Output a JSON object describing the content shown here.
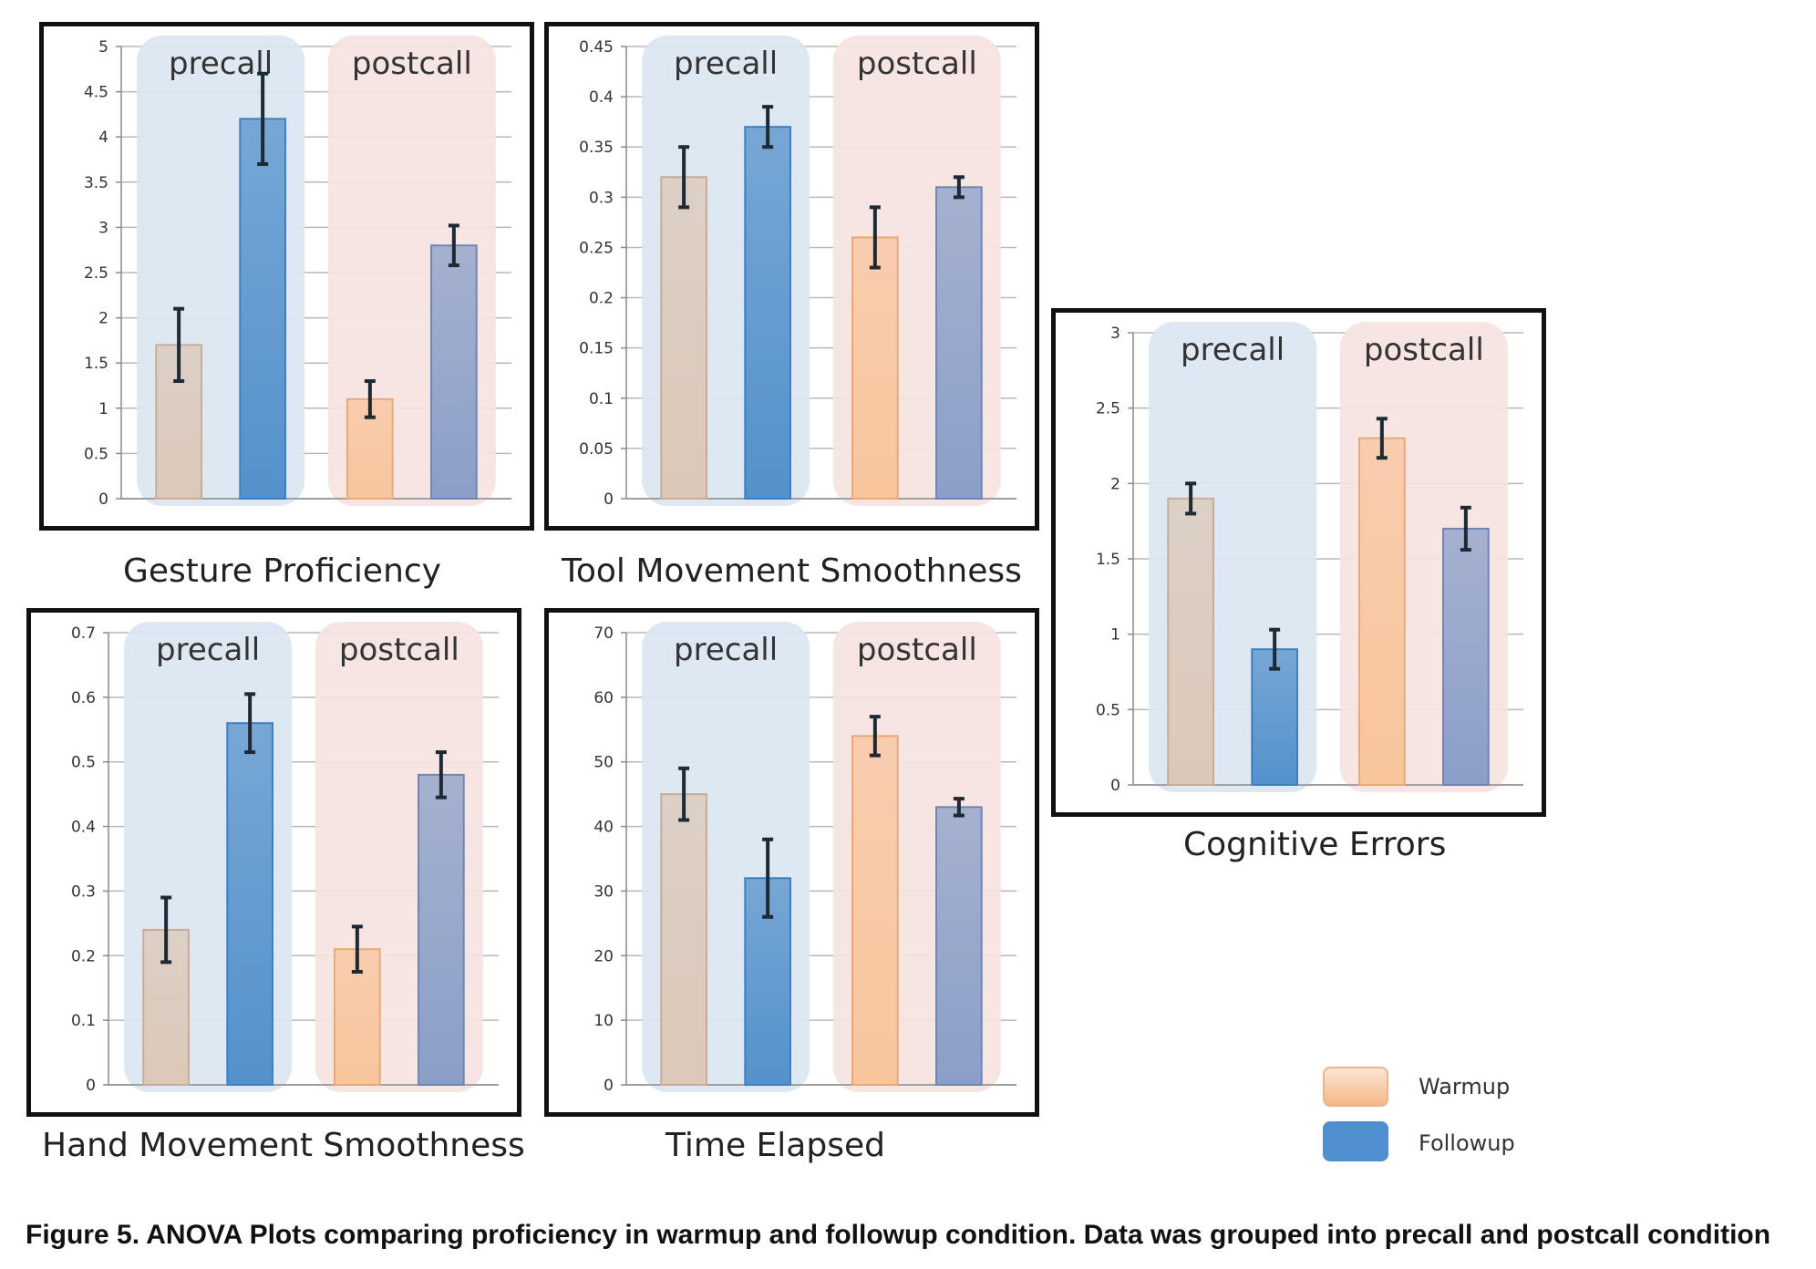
{
  "legend": {
    "items": [
      {
        "label": "Warmup",
        "color": "#f7c193"
      },
      {
        "label": "Followup",
        "color": "#4f8fd0"
      }
    ]
  },
  "caption": "Figure 5. ANOVA Plots comparing proficiency in warmup and followup condition. Data was grouped into precall and postcall condition",
  "colors": {
    "precall_band": "#dbe6f1",
    "postcall_band": "#f6e3e1",
    "warmup_precall": "#dcc8b8",
    "warmup_postcall": "#f8c59c",
    "followup_precall": "#5491cc",
    "followup_postcall": "#8a9fc8",
    "error_bar": "#1e2a33"
  },
  "chart_data": [
    {
      "type": "bar",
      "title": "Gesture Proficiency",
      "groups": [
        "precall",
        "postcall"
      ],
      "series_order": [
        "Warmup",
        "Followup"
      ],
      "values": [
        1.7,
        4.2,
        1.1,
        2.8
      ],
      "errors": [
        0.4,
        0.5,
        0.2,
        0.22
      ],
      "ylim": [
        0,
        5
      ],
      "yticks": [
        "0",
        "0.5",
        "1",
        "1.5",
        "2",
        "2.5",
        "3",
        "3.5",
        "4",
        "4.5",
        "5"
      ],
      "grid": true
    },
    {
      "type": "bar",
      "title": "Tool Movement Smoothness",
      "groups": [
        "precall",
        "postcall"
      ],
      "series_order": [
        "Warmup",
        "Followup"
      ],
      "values": [
        0.32,
        0.37,
        0.26,
        0.31
      ],
      "errors": [
        0.03,
        0.02,
        0.03,
        0.01
      ],
      "ylim": [
        0,
        0.45
      ],
      "yticks": [
        "0",
        "0.05",
        "0.1",
        "0.15",
        "0.2",
        "0.25",
        "0.3",
        "0.35",
        "0.4",
        "0.45"
      ],
      "grid": true
    },
    {
      "type": "bar",
      "title": "Cognitive Errors",
      "groups": [
        "precall",
        "postcall"
      ],
      "series_order": [
        "Warmup",
        "Followup"
      ],
      "values": [
        1.9,
        0.9,
        2.3,
        1.7
      ],
      "errors": [
        0.1,
        0.13,
        0.13,
        0.14
      ],
      "ylim": [
        0,
        3
      ],
      "yticks": [
        "0",
        "0.5",
        "1",
        "1.5",
        "2",
        "2.5",
        "3"
      ],
      "grid": true
    },
    {
      "type": "bar",
      "title": "Hand Movement Smoothness",
      "groups": [
        "precall",
        "postcall"
      ],
      "series_order": [
        "Warmup",
        "Followup"
      ],
      "values": [
        0.24,
        0.56,
        0.21,
        0.48
      ],
      "errors": [
        0.05,
        0.045,
        0.035,
        0.035
      ],
      "ylim": [
        0,
        0.7
      ],
      "yticks": [
        "0",
        "0.1",
        "0.2",
        "0.3",
        "0.4",
        "0.5",
        "0.6",
        "0.7"
      ],
      "grid": true
    },
    {
      "type": "bar",
      "title": "Time Elapsed",
      "groups": [
        "precall",
        "postcall"
      ],
      "series_order": [
        "Warmup",
        "Followup"
      ],
      "values": [
        45,
        32,
        54,
        43
      ],
      "errors": [
        4,
        6,
        3,
        1.3
      ],
      "ylim": [
        0,
        70
      ],
      "yticks": [
        "0",
        "10",
        "20",
        "30",
        "40",
        "50",
        "60",
        "70"
      ],
      "grid": true
    }
  ]
}
